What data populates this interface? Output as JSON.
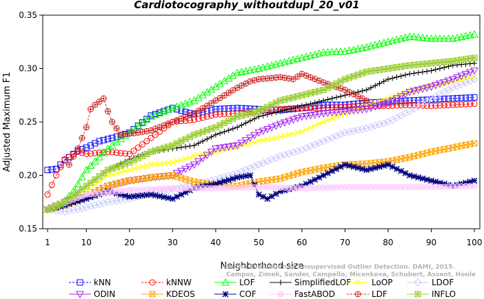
{
  "chart_data": {
    "type": "line",
    "title": "Cardiotocography_withoutdupl_20_v01",
    "xlabel": "Neighborhood size",
    "ylabel": "Adjusted Maximum F1",
    "xlim": [
      1,
      100
    ],
    "ylim": [
      0.15,
      0.35
    ],
    "x_ticks": [
      1,
      10,
      20,
      30,
      40,
      50,
      60,
      70,
      80,
      90,
      100
    ],
    "y_ticks": [
      0.15,
      0.2,
      0.25,
      0.3,
      0.35
    ],
    "y_tick_labels": [
      "0.15",
      "0.20",
      "0.25",
      "0.30",
      "0.35"
    ],
    "grid": false,
    "legend_position": "bottom",
    "credit": "Campos, Zimek, Sander, Campello, Micenkova, Schubert, Assent, Houle: On the Evaluation of Unsupervised Outlier Detection. DAMI, 2015.",
    "credit_lines": [
      "On the Evaluation of Unsupervised Outlier Detection. DAMI, 2015.",
      "Campos, Zimek, Sander, Campello, Micenkova, Schubert, Assent, Houle"
    ],
    "series": [
      {
        "name": "kNN",
        "color": "#0000ff",
        "marker": "square",
        "dashed": true,
        "points": [
          [
            1,
            0.205
          ],
          [
            3,
            0.206
          ],
          [
            5,
            0.214
          ],
          [
            8,
            0.223
          ],
          [
            10,
            0.226
          ],
          [
            13,
            0.232
          ],
          [
            16,
            0.235
          ],
          [
            20,
            0.24
          ],
          [
            25,
            0.256
          ],
          [
            30,
            0.263
          ],
          [
            35,
            0.257
          ],
          [
            40,
            0.262
          ],
          [
            45,
            0.263
          ],
          [
            50,
            0.262
          ],
          [
            55,
            0.261
          ],
          [
            60,
            0.263
          ],
          [
            65,
            0.266
          ],
          [
            70,
            0.266
          ],
          [
            75,
            0.268
          ],
          [
            80,
            0.269
          ],
          [
            85,
            0.27
          ],
          [
            90,
            0.271
          ],
          [
            95,
            0.272
          ],
          [
            100,
            0.273
          ]
        ]
      },
      {
        "name": "kNNW",
        "color": "#ff0000",
        "marker": "circle",
        "dashed": true,
        "points": [
          [
            1,
            0.182
          ],
          [
            3,
            0.2
          ],
          [
            5,
            0.215
          ],
          [
            8,
            0.222
          ],
          [
            10,
            0.22
          ],
          [
            15,
            0.222
          ],
          [
            20,
            0.22
          ],
          [
            25,
            0.235
          ],
          [
            30,
            0.25
          ],
          [
            35,
            0.252
          ],
          [
            40,
            0.257
          ],
          [
            45,
            0.258
          ],
          [
            50,
            0.26
          ],
          [
            55,
            0.262
          ],
          [
            60,
            0.263
          ],
          [
            65,
            0.263
          ],
          [
            70,
            0.264
          ],
          [
            75,
            0.265
          ],
          [
            80,
            0.265
          ],
          [
            85,
            0.266
          ],
          [
            90,
            0.265
          ],
          [
            95,
            0.266
          ],
          [
            100,
            0.267
          ]
        ]
      },
      {
        "name": "LOF",
        "color": "#00ff00",
        "marker": "triangle-up",
        "dashed": false,
        "points": [
          [
            1,
            0.168
          ],
          [
            4,
            0.172
          ],
          [
            7,
            0.185
          ],
          [
            10,
            0.205
          ],
          [
            15,
            0.225
          ],
          [
            20,
            0.24
          ],
          [
            25,
            0.255
          ],
          [
            30,
            0.263
          ],
          [
            35,
            0.27
          ],
          [
            40,
            0.283
          ],
          [
            45,
            0.296
          ],
          [
            50,
            0.3
          ],
          [
            55,
            0.305
          ],
          [
            60,
            0.31
          ],
          [
            65,
            0.315
          ],
          [
            70,
            0.316
          ],
          [
            75,
            0.32
          ],
          [
            80,
            0.325
          ],
          [
            85,
            0.33
          ],
          [
            90,
            0.328
          ],
          [
            95,
            0.328
          ],
          [
            100,
            0.332
          ]
        ]
      },
      {
        "name": "SimplifiedLOF",
        "color": "#000000",
        "marker": "plus",
        "dashed": false,
        "points": [
          [
            1,
            0.168
          ],
          [
            5,
            0.175
          ],
          [
            10,
            0.19
          ],
          [
            15,
            0.205
          ],
          [
            20,
            0.215
          ],
          [
            25,
            0.222
          ],
          [
            30,
            0.225
          ],
          [
            35,
            0.228
          ],
          [
            40,
            0.238
          ],
          [
            45,
            0.245
          ],
          [
            50,
            0.255
          ],
          [
            55,
            0.26
          ],
          [
            60,
            0.265
          ],
          [
            65,
            0.27
          ],
          [
            70,
            0.275
          ],
          [
            75,
            0.28
          ],
          [
            80,
            0.29
          ],
          [
            85,
            0.295
          ],
          [
            90,
            0.298
          ],
          [
            95,
            0.303
          ],
          [
            100,
            0.305
          ]
        ]
      },
      {
        "name": "LoOP",
        "color": "#ffff00",
        "marker": "x",
        "dashed": false,
        "points": [
          [
            1,
            0.168
          ],
          [
            5,
            0.172
          ],
          [
            10,
            0.185
          ],
          [
            15,
            0.2
          ],
          [
            20,
            0.205
          ],
          [
            25,
            0.21
          ],
          [
            30,
            0.212
          ],
          [
            35,
            0.218
          ],
          [
            40,
            0.222
          ],
          [
            45,
            0.227
          ],
          [
            50,
            0.232
          ],
          [
            55,
            0.236
          ],
          [
            60,
            0.241
          ],
          [
            65,
            0.25
          ],
          [
            70,
            0.258
          ],
          [
            75,
            0.265
          ],
          [
            80,
            0.272
          ],
          [
            85,
            0.278
          ],
          [
            90,
            0.284
          ],
          [
            95,
            0.288
          ],
          [
            100,
            0.292
          ]
        ]
      },
      {
        "name": "LDOF",
        "color": "#c8c8ff",
        "marker": "diamond",
        "dashed": false,
        "points": [
          [
            1,
            0.168
          ],
          [
            5,
            0.166
          ],
          [
            10,
            0.17
          ],
          [
            15,
            0.175
          ],
          [
            20,
            0.178
          ],
          [
            25,
            0.183
          ],
          [
            30,
            0.187
          ],
          [
            35,
            0.191
          ],
          [
            40,
            0.196
          ],
          [
            45,
            0.202
          ],
          [
            50,
            0.21
          ],
          [
            55,
            0.218
          ],
          [
            60,
            0.224
          ],
          [
            65,
            0.232
          ],
          [
            70,
            0.24
          ],
          [
            75,
            0.244
          ],
          [
            80,
            0.25
          ],
          [
            85,
            0.26
          ],
          [
            90,
            0.272
          ],
          [
            95,
            0.282
          ],
          [
            100,
            0.29
          ]
        ]
      },
      {
        "name": "ODIN",
        "color": "#a020f0",
        "marker": "triangle-down",
        "dashed": false,
        "points": [
          [
            1,
            0.168
          ],
          [
            5,
            0.175
          ],
          [
            10,
            0.18
          ],
          [
            15,
            0.19
          ],
          [
            20,
            0.195
          ],
          [
            25,
            0.198
          ],
          [
            30,
            0.2
          ],
          [
            35,
            0.21
          ],
          [
            40,
            0.225
          ],
          [
            45,
            0.228
          ],
          [
            50,
            0.24
          ],
          [
            55,
            0.248
          ],
          [
            60,
            0.255
          ],
          [
            65,
            0.258
          ],
          [
            70,
            0.26
          ],
          [
            75,
            0.262
          ],
          [
            80,
            0.268
          ],
          [
            85,
            0.278
          ],
          [
            90,
            0.283
          ],
          [
            95,
            0.29
          ],
          [
            100,
            0.298
          ]
        ]
      },
      {
        "name": "KDEOS",
        "color": "#ffa500",
        "marker": "square-x",
        "dashed": false,
        "points": [
          [
            1,
            0.168
          ],
          [
            5,
            0.172
          ],
          [
            10,
            0.18
          ],
          [
            15,
            0.19
          ],
          [
            20,
            0.195
          ],
          [
            25,
            0.198
          ],
          [
            30,
            0.2
          ],
          [
            35,
            0.194
          ],
          [
            40,
            0.191
          ],
          [
            45,
            0.19
          ],
          [
            50,
            0.194
          ],
          [
            55,
            0.197
          ],
          [
            60,
            0.203
          ],
          [
            65,
            0.207
          ],
          [
            70,
            0.21
          ],
          [
            75,
            0.211
          ],
          [
            80,
            0.213
          ],
          [
            85,
            0.217
          ],
          [
            90,
            0.222
          ],
          [
            95,
            0.226
          ],
          [
            100,
            0.23
          ]
        ]
      },
      {
        "name": "COF",
        "color": "#000080",
        "marker": "asterisk",
        "dashed": false,
        "points": [
          [
            1,
            0.168
          ],
          [
            5,
            0.172
          ],
          [
            10,
            0.178
          ],
          [
            15,
            0.185
          ],
          [
            20,
            0.18
          ],
          [
            25,
            0.182
          ],
          [
            30,
            0.178
          ],
          [
            35,
            0.188
          ],
          [
            40,
            0.192
          ],
          [
            45,
            0.198
          ],
          [
            48,
            0.2
          ],
          [
            50,
            0.182
          ],
          [
            52,
            0.178
          ],
          [
            55,
            0.185
          ],
          [
            60,
            0.19
          ],
          [
            65,
            0.2
          ],
          [
            70,
            0.21
          ],
          [
            75,
            0.205
          ],
          [
            80,
            0.21
          ],
          [
            85,
            0.2
          ],
          [
            90,
            0.195
          ],
          [
            95,
            0.19
          ],
          [
            100,
            0.195
          ]
        ]
      },
      {
        "name": "FastABOD",
        "color": "#ffc8ff",
        "marker": "circle-dot",
        "dashed": false,
        "points": [
          [
            1,
            0.168
          ],
          [
            10,
            0.182
          ],
          [
            20,
            0.186
          ],
          [
            30,
            0.188
          ],
          [
            40,
            0.188
          ],
          [
            50,
            0.189
          ],
          [
            60,
            0.188
          ],
          [
            70,
            0.189
          ],
          [
            80,
            0.189
          ],
          [
            90,
            0.189
          ],
          [
            100,
            0.19
          ]
        ]
      },
      {
        "name": "LDF",
        "color": "#cc2222",
        "marker": "circle-plus",
        "dashed": true,
        "points": [
          [
            6,
            0.21
          ],
          [
            8,
            0.225
          ],
          [
            10,
            0.245
          ],
          [
            11,
            0.262
          ],
          [
            12,
            0.266
          ],
          [
            14,
            0.272
          ],
          [
            15,
            0.26
          ],
          [
            16,
            0.25
          ],
          [
            18,
            0.238
          ],
          [
            22,
            0.24
          ],
          [
            25,
            0.242
          ],
          [
            30,
            0.25
          ],
          [
            35,
            0.258
          ],
          [
            40,
            0.27
          ],
          [
            45,
            0.282
          ],
          [
            48,
            0.288
          ],
          [
            50,
            0.29
          ],
          [
            55,
            0.292
          ],
          [
            58,
            0.29
          ],
          [
            60,
            0.295
          ],
          [
            65,
            0.287
          ],
          [
            70,
            0.28
          ],
          [
            75,
            0.27
          ]
        ]
      },
      {
        "name": "INFLO",
        "color": "#9acd32",
        "marker": "square-star",
        "dashed": false,
        "points": [
          [
            1,
            0.168
          ],
          [
            5,
            0.175
          ],
          [
            10,
            0.19
          ],
          [
            15,
            0.205
          ],
          [
            20,
            0.212
          ],
          [
            25,
            0.222
          ],
          [
            30,
            0.228
          ],
          [
            35,
            0.238
          ],
          [
            40,
            0.245
          ],
          [
            45,
            0.255
          ],
          [
            50,
            0.26
          ],
          [
            55,
            0.27
          ],
          [
            60,
            0.275
          ],
          [
            65,
            0.28
          ],
          [
            70,
            0.29
          ],
          [
            75,
            0.297
          ],
          [
            80,
            0.3
          ],
          [
            85,
            0.303
          ],
          [
            90,
            0.305
          ],
          [
            95,
            0.307
          ],
          [
            100,
            0.31
          ]
        ]
      }
    ]
  }
}
